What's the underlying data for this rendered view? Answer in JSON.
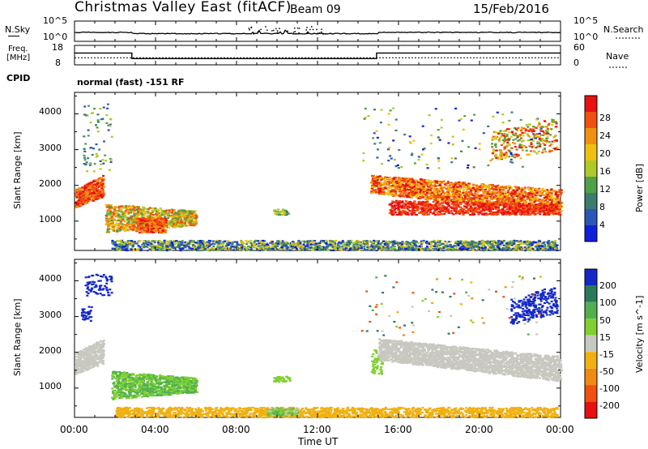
{
  "header": {
    "station": "Christmas Valley East (fitACF)",
    "beam": "Beam 09",
    "date": "15/Feb/2016"
  },
  "chart_data": [
    {
      "type": "line",
      "name": "N.Sky / N.Search",
      "left_label": "N.Sky",
      "right_label": "N.Search",
      "ticks_left": [
        "10^5",
        "10^0"
      ],
      "ticks_right": [
        "10^5",
        "10^0"
      ]
    },
    {
      "type": "line",
      "name": "Freq / Nave",
      "left_label_top": "Freq.",
      "left_label_bottom": "[MHz]",
      "right_label": "Nave",
      "ticks_left": [
        "18",
        "8"
      ],
      "ticks_right": [
        "60",
        "0"
      ],
      "freq_segments": [
        {
          "t_start": "00:00",
          "t_end": "02:50",
          "freq_mhz": 14.5
        },
        {
          "t_start": "02:50",
          "t_end": "14:55",
          "freq_mhz": 10.5
        },
        {
          "t_start": "14:55",
          "t_end": "24:00",
          "freq_mhz": 14.5
        }
      ],
      "nave_level": 22
    },
    {
      "type": "text",
      "cpid_label": "CPID",
      "program": "normal (fast) -151 RF"
    },
    {
      "type": "heatmap",
      "name": "Power",
      "ylabel": "Slant Range [km]",
      "yticks": [
        1000,
        2000,
        3000,
        4000
      ],
      "ylim": [
        180,
        4600
      ],
      "xlim_hours": [
        0,
        24
      ],
      "colorbar_label": "Power [dB]",
      "colorbar_ticks": [
        4,
        8,
        12,
        16,
        20,
        24,
        28
      ],
      "colorbar_colors": [
        "#1020d8",
        "#2a56b8",
        "#3c7c70",
        "#50a048",
        "#b0c828",
        "#f0c010",
        "#f09010",
        "#f05010",
        "#e81010"
      ]
    },
    {
      "type": "heatmap",
      "name": "Velocity",
      "ylabel": "Slant Range [km]",
      "yticks": [
        1000,
        2000,
        3000,
        4000
      ],
      "ylim": [
        180,
        4600
      ],
      "xlim_hours": [
        0,
        24
      ],
      "colorbar_label": "Velocity [m s^-1]",
      "colorbar_ticks": [
        "200",
        "100",
        "50",
        "15",
        "-15",
        "-50",
        "-100",
        "-200"
      ],
      "colorbar_colors": [
        "#1428c8",
        "#2a7a5a",
        "#50b050",
        "#80d030",
        "#c8c8c0",
        "#f0b010",
        "#f08a10",
        "#f05010",
        "#e81010"
      ]
    }
  ],
  "x_axis": {
    "label": "Time UT",
    "ticks": [
      "00:00",
      "04:00",
      "08:00",
      "12:00",
      "16:00",
      "20:00",
      "00:00"
    ]
  }
}
